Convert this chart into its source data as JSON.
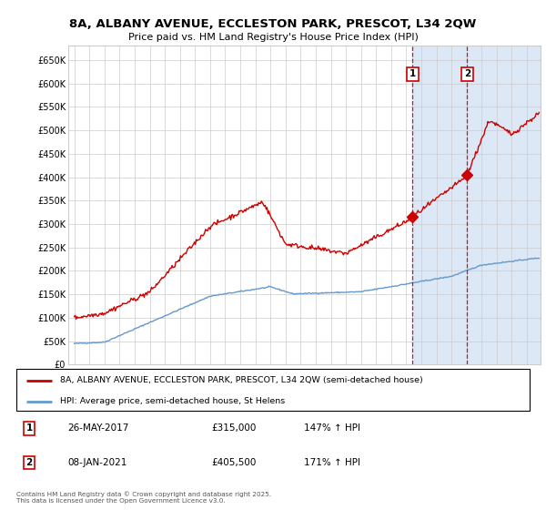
{
  "title": "8A, ALBANY AVENUE, ECCLESTON PARK, PRESCOT, L34 2QW",
  "subtitle": "Price paid vs. HM Land Registry's House Price Index (HPI)",
  "ylim": [
    0,
    680000
  ],
  "legend_line1": "8A, ALBANY AVENUE, ECCLESTON PARK, PRESCOT, L34 2QW (semi-detached house)",
  "legend_line2": "HPI: Average price, semi-detached house, St Helens",
  "annotation1_date": "26-MAY-2017",
  "annotation1_price": "£315,000",
  "annotation1_hpi": "147% ↑ HPI",
  "annotation2_date": "08-JAN-2021",
  "annotation2_price": "£405,500",
  "annotation2_hpi": "171% ↑ HPI",
  "footer": "Contains HM Land Registry data © Crown copyright and database right 2025.\nThis data is licensed under the Open Government Licence v3.0.",
  "red_color": "#cc0000",
  "blue_color": "#6699cc",
  "shade_color": "#dce8f5",
  "plot_bg_color": "#ffffff",
  "grid_color": "#cccccc",
  "sale1_x": 2017.417,
  "sale1_y": 315000,
  "sale2_x": 2021.042,
  "sale2_y": 405500,
  "xlim_left": 1994.6,
  "xlim_right": 2025.9
}
